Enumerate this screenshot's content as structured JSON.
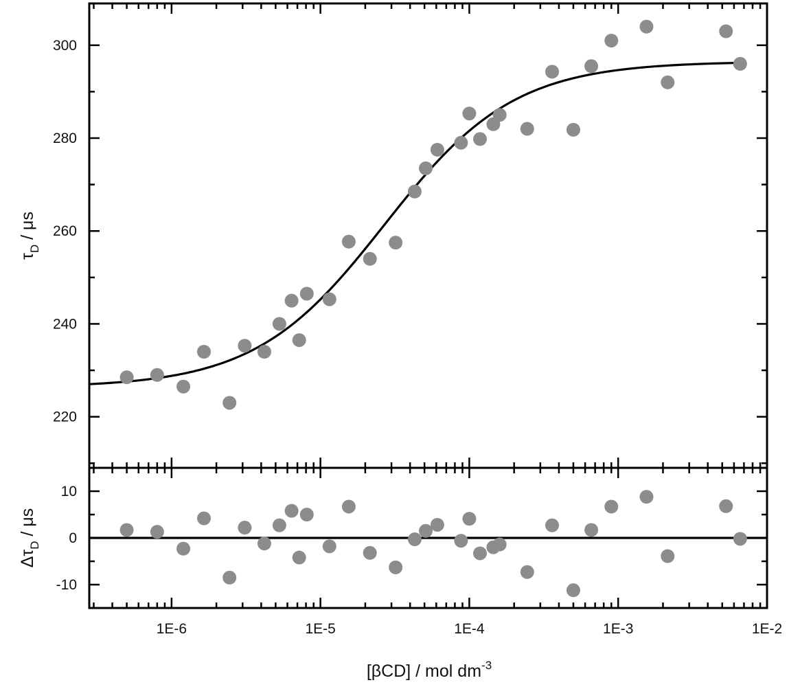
{
  "chart_data": [
    {
      "type": "scatter",
      "panel": "top",
      "x_scale": "log",
      "xlim": [
        2.8e-07,
        0.01
      ],
      "ylim": [
        209,
        309
      ],
      "xlabel": "[βCD] / mol dm",
      "xlabel_sup": "-3",
      "ylabel_main": "τ",
      "ylabel_sub": "D",
      "ylabel_unit": " / μs",
      "yticks": [
        220,
        240,
        260,
        280,
        300
      ],
      "ytick_labels": [
        "220",
        "240",
        "260",
        "280",
        "300"
      ],
      "xticks": [
        1e-06,
        1e-05,
        0.0001,
        0.001,
        0.01
      ],
      "xtick_labels": [
        "1E-6",
        "1E-5",
        "1E-4",
        "1E-3",
        "1E-2"
      ],
      "marker_color": "#8c8c8c",
      "line_color": "#000000",
      "series": [
        {
          "kind": "points",
          "x": [
            5e-07,
            8e-07,
            1.2e-06,
            1.65e-06,
            2.45e-06,
            3.1e-06,
            4.2e-06,
            5.3e-06,
            6.4e-06,
            7.2e-06,
            8.1e-06,
            1.15e-05,
            1.55e-05,
            2.15e-05,
            3.2e-05,
            4.3e-05,
            5.1e-05,
            6.1e-05,
            8.8e-05,
            0.0001,
            0.000118,
            0.000145,
            0.00016,
            0.000245,
            0.00036,
            0.0005,
            0.00066,
            0.0009,
            0.00155,
            0.00215,
            0.0053,
            0.0066
          ],
          "y": [
            228.5,
            229,
            226.5,
            234,
            223,
            235.3,
            234,
            240,
            245,
            236.5,
            246.5,
            245.3,
            257.7,
            254,
            257.5,
            268.5,
            273.5,
            277.5,
            279,
            285.3,
            279.8,
            283,
            285,
            282,
            294.3,
            281.8,
            295.5,
            301,
            304,
            292,
            303,
            296
          ]
        },
        {
          "kind": "fit",
          "model": "sigmoid",
          "y_min": 226.3,
          "y_max": 296.5,
          "x_mid": 2.7e-05,
          "slope": 1.0
        }
      ]
    },
    {
      "type": "scatter",
      "panel": "bottom",
      "x_scale": "log",
      "xlim": [
        2.8e-07,
        0.01
      ],
      "ylim": [
        -15,
        15
      ],
      "ylabel_main": "Δτ",
      "ylabel_sub": "D",
      "ylabel_unit": " / μs",
      "yticks": [
        -10,
        0,
        10
      ],
      "ytick_labels": [
        "-10",
        "0",
        "10"
      ],
      "zero_line": 0,
      "series": [
        {
          "kind": "points",
          "x": [
            5e-07,
            8e-07,
            1.2e-06,
            1.65e-06,
            2.45e-06,
            3.1e-06,
            4.2e-06,
            5.3e-06,
            6.4e-06,
            7.2e-06,
            8.1e-06,
            1.15e-05,
            1.55e-05,
            2.15e-05,
            3.2e-05,
            4.3e-05,
            5.1e-05,
            6.1e-05,
            8.8e-05,
            0.0001,
            0.000118,
            0.000145,
            0.00016,
            0.000245,
            0.00036,
            0.0005,
            0.00066,
            0.0009,
            0.00155,
            0.00215,
            0.0053,
            0.0066
          ],
          "y": [
            1.7,
            1.3,
            -2.3,
            4.2,
            -8.5,
            2.2,
            -1.2,
            2.7,
            5.8,
            -4.2,
            5,
            -1.8,
            6.7,
            -3.2,
            -6.3,
            -0.3,
            1.5,
            2.8,
            -0.6,
            4.1,
            -3.3,
            -2,
            -1.4,
            -7.3,
            2.7,
            -11.2,
            1.7,
            6.7,
            8.8,
            -3.9,
            6.8,
            -0.2
          ]
        }
      ]
    }
  ]
}
